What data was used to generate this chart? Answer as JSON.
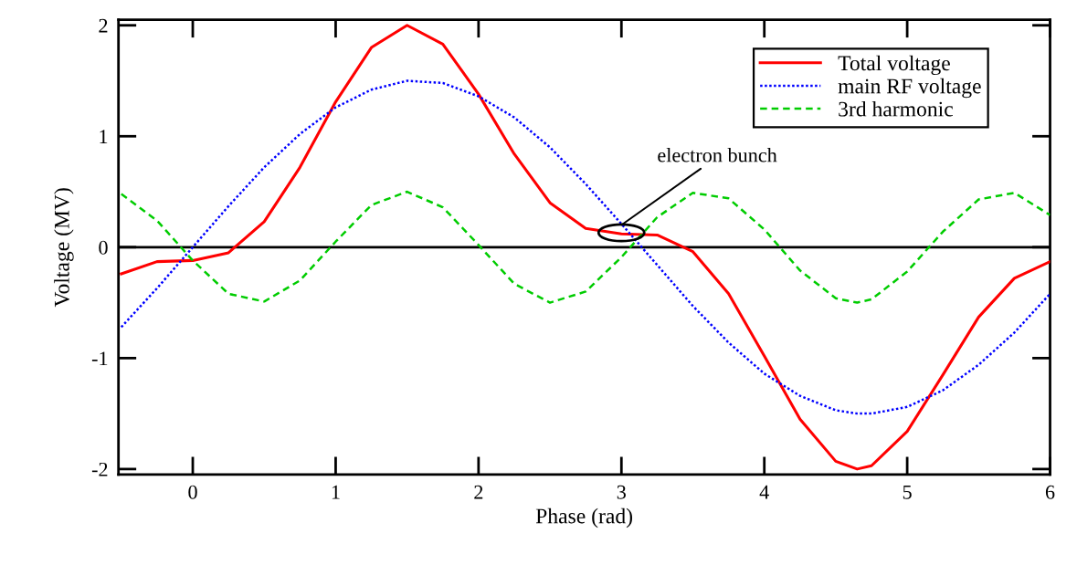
{
  "chart_data": {
    "type": "line",
    "xlabel": "Phase (rad)",
    "ylabel": "Voltage (MV)",
    "x": [
      -0.5,
      -0.25,
      0,
      0.25,
      0.5,
      0.75,
      1.0,
      1.25,
      1.5,
      1.75,
      2.0,
      2.25,
      2.5,
      2.75,
      3.0,
      3.25,
      3.5,
      3.75,
      4.0,
      4.25,
      4.5,
      4.65,
      4.75,
      5.0,
      5.25,
      5.5,
      5.75,
      6.0
    ],
    "series": [
      {
        "name": "Total voltage",
        "color": "#ff0000",
        "line_style": "solid",
        "values": [
          -0.24,
          -0.13,
          -0.12,
          -0.05,
          0.23,
          0.72,
          1.31,
          1.8,
          2.0,
          1.83,
          1.38,
          0.84,
          0.4,
          0.17,
          0.12,
          0.11,
          -0.04,
          -0.42,
          -0.98,
          -1.55,
          -1.93,
          -2.0,
          -1.97,
          -1.66,
          -1.15,
          -0.63,
          -0.28,
          -0.13
        ]
      },
      {
        "name": "main RF voltage",
        "color": "#0000ff",
        "line_style": "dotted",
        "values": [
          -0.72,
          -0.37,
          0.0,
          0.37,
          0.72,
          1.02,
          1.26,
          1.42,
          1.5,
          1.48,
          1.36,
          1.17,
          0.9,
          0.57,
          0.21,
          -0.16,
          -0.53,
          -0.86,
          -1.14,
          -1.34,
          -1.47,
          -1.5,
          -1.5,
          -1.44,
          -1.29,
          -1.06,
          -0.77,
          -0.42
        ]
      },
      {
        "name": "3rd harmonic",
        "color": "#00cc00",
        "line_style": "dashed",
        "values": [
          0.48,
          0.24,
          -0.12,
          -0.42,
          -0.49,
          -0.3,
          0.05,
          0.38,
          0.5,
          0.36,
          0.02,
          -0.33,
          -0.5,
          -0.4,
          -0.09,
          0.27,
          0.49,
          0.44,
          0.16,
          -0.21,
          -0.46,
          -0.5,
          -0.47,
          -0.22,
          0.14,
          0.43,
          0.49,
          0.29
        ]
      }
    ],
    "xlim": [
      -0.52,
      6.0
    ],
    "ylim": [
      -2.05,
      2.05
    ],
    "xticks": [
      0,
      1,
      2,
      3,
      4,
      5,
      6
    ],
    "yticks": [
      -2,
      -1,
      0,
      1,
      2
    ],
    "ref_lines": [
      {
        "axis": "y",
        "value": 0,
        "color": "#000000",
        "line_style": "solid"
      }
    ],
    "annotations": [
      {
        "text": "electron bunch",
        "x": 3.0,
        "y": 0.13
      }
    ],
    "legend": "top right",
    "grid": false
  }
}
